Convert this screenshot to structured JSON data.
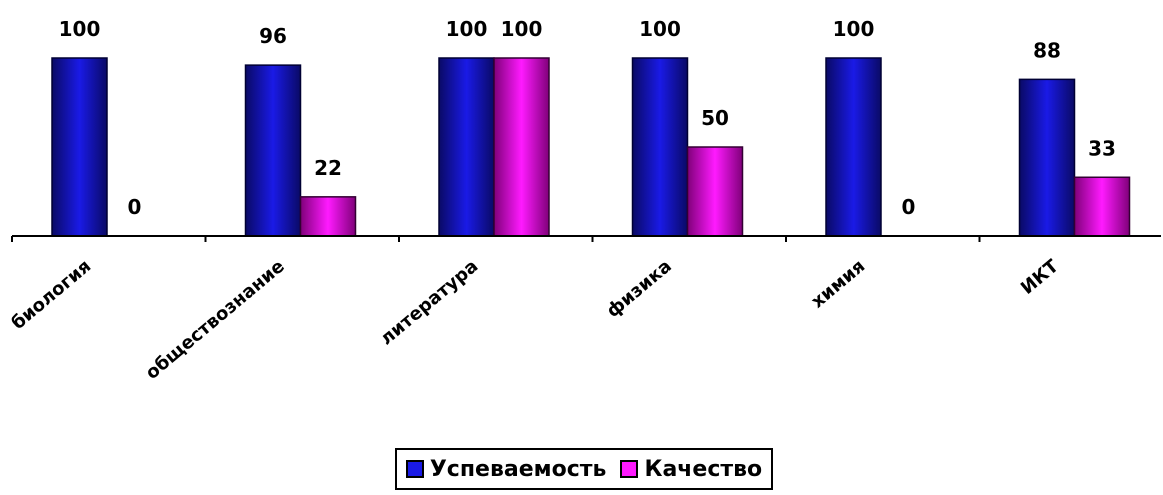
{
  "chart_data": {
    "type": "bar",
    "categories": [
      "биология",
      "обществознание",
      "литература",
      "физика",
      "химия",
      "ИКТ"
    ],
    "series": [
      {
        "name": "Успеваемость",
        "values": [
          100,
          96,
          100,
          100,
          100,
          88
        ]
      },
      {
        "name": "Качество",
        "values": [
          0,
          22,
          100,
          50,
          0,
          33
        ]
      }
    ],
    "ylim": [
      0,
      100
    ],
    "grid": false,
    "legend_position": "bottom",
    "colors": {
      "Успеваемость": "#1a1ae6",
      "Успеваемость_dark": "#0a0a66",
      "Качество": "#ff1aff",
      "Качество_dark": "#80007a"
    }
  }
}
